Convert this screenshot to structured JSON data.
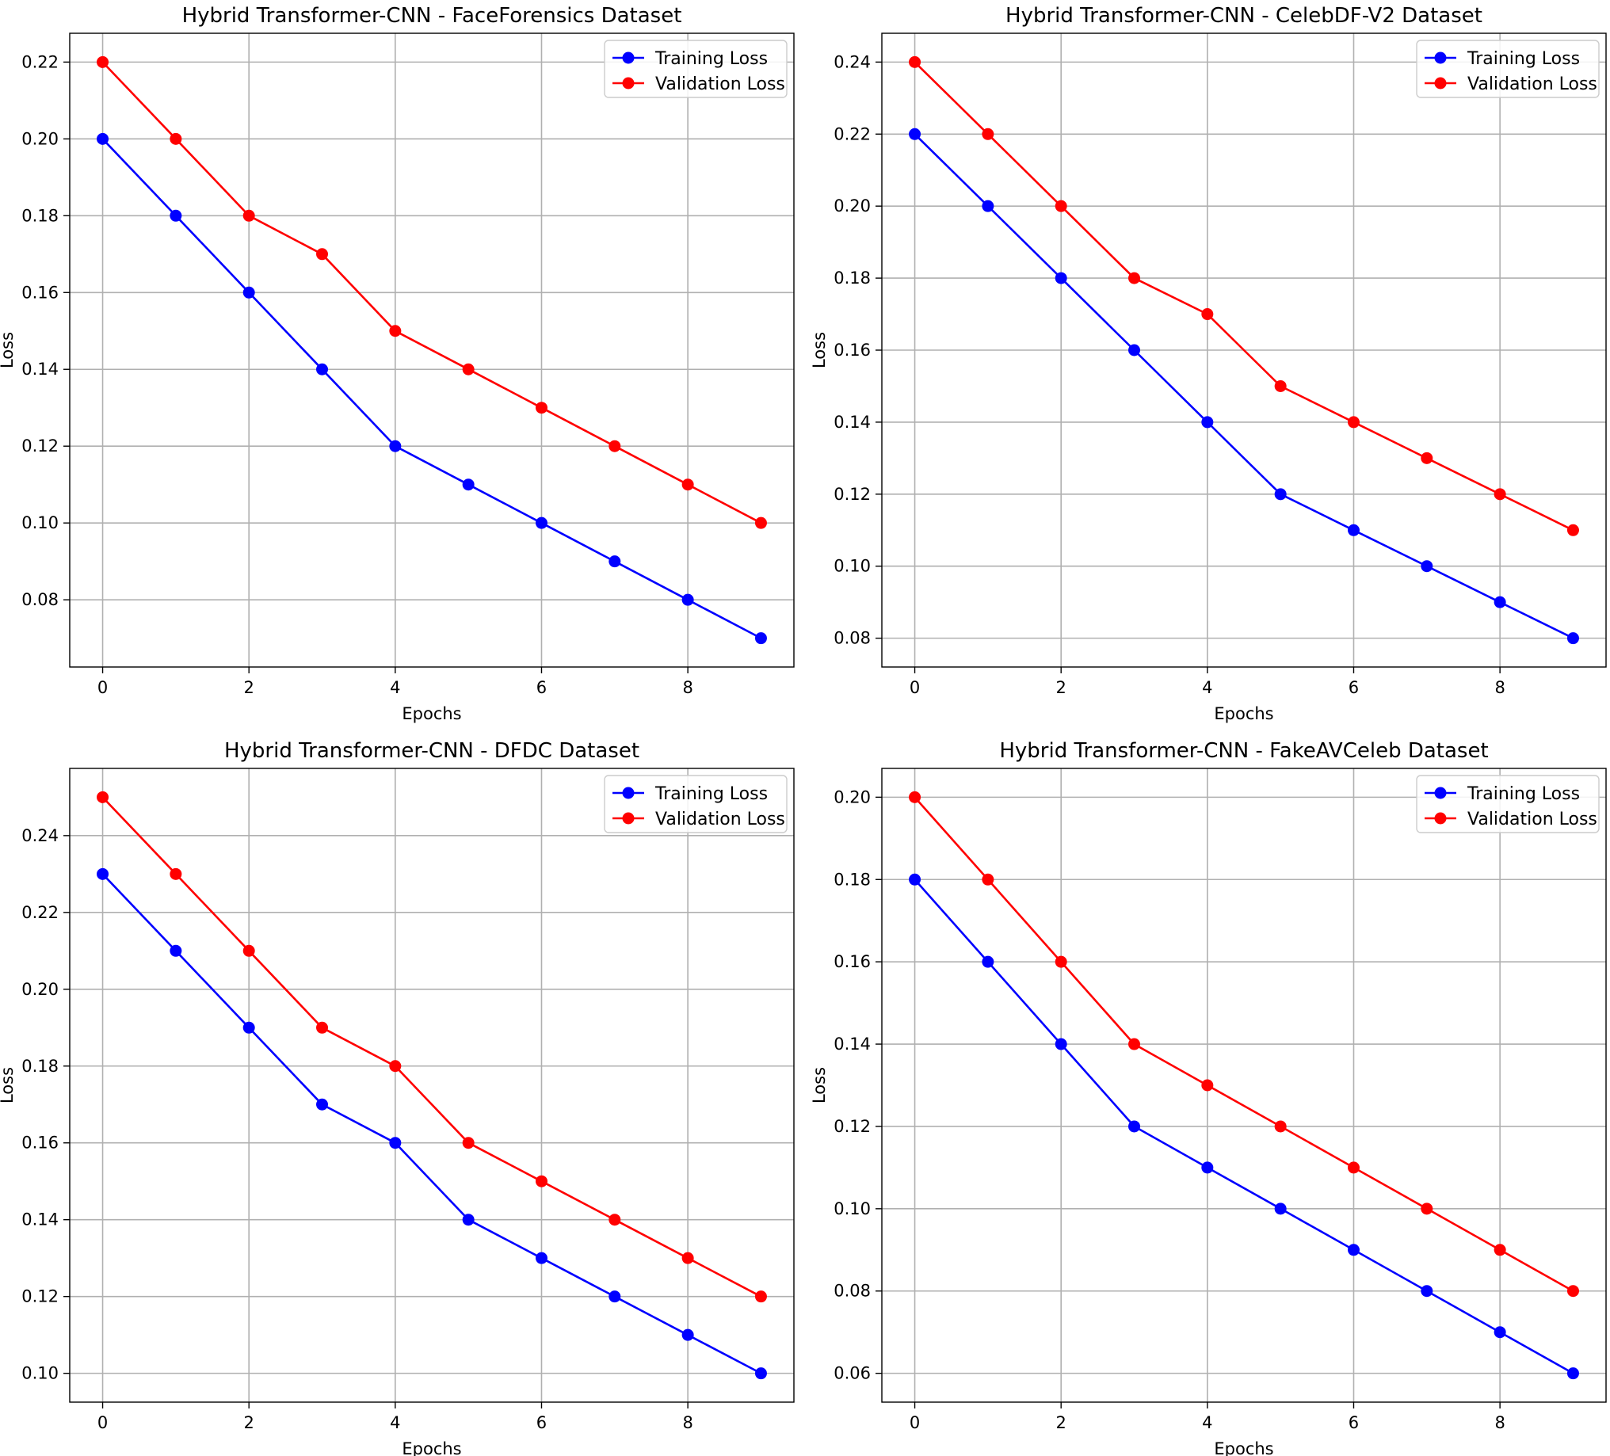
{
  "chart_data": [
    {
      "type": "line",
      "title": "Hybrid Transformer-CNN - FaceForensics Dataset",
      "xlabel": "Epochs",
      "ylabel": "Loss",
      "x": [
        0,
        1,
        2,
        3,
        4,
        5,
        6,
        7,
        8,
        9
      ],
      "xlim": [
        -0.45,
        9.45
      ],
      "ylim": [
        0.0625,
        0.2275
      ],
      "xticks": [
        0,
        2,
        4,
        6,
        8
      ],
      "yticks": [
        0.08,
        0.1,
        0.12,
        0.14,
        0.16,
        0.18,
        0.2,
        0.22
      ],
      "grid": true,
      "legend": "top-right",
      "series": [
        {
          "name": "Training Loss",
          "color": "#0000ff",
          "values": [
            0.2,
            0.18,
            0.16,
            0.14,
            0.12,
            0.11,
            0.1,
            0.09,
            0.08,
            0.07
          ]
        },
        {
          "name": "Validation Loss",
          "color": "#ff0000",
          "values": [
            0.22,
            0.2,
            0.18,
            0.17,
            0.15,
            0.14,
            0.13,
            0.12,
            0.11,
            0.1
          ]
        }
      ]
    },
    {
      "type": "line",
      "title": "Hybrid Transformer-CNN - CelebDF-V2 Dataset",
      "xlabel": "Epochs",
      "ylabel": "Loss",
      "x": [
        0,
        1,
        2,
        3,
        4,
        5,
        6,
        7,
        8,
        9
      ],
      "xlim": [
        -0.45,
        9.45
      ],
      "ylim": [
        0.072,
        0.248
      ],
      "xticks": [
        0,
        2,
        4,
        6,
        8
      ],
      "yticks": [
        0.08,
        0.1,
        0.12,
        0.14,
        0.16,
        0.18,
        0.2,
        0.22,
        0.24
      ],
      "grid": true,
      "legend": "top-right",
      "series": [
        {
          "name": "Training Loss",
          "color": "#0000ff",
          "values": [
            0.22,
            0.2,
            0.18,
            0.16,
            0.14,
            0.12,
            0.11,
            0.1,
            0.09,
            0.08
          ]
        },
        {
          "name": "Validation Loss",
          "color": "#ff0000",
          "values": [
            0.24,
            0.22,
            0.2,
            0.18,
            0.17,
            0.15,
            0.14,
            0.13,
            0.12,
            0.11
          ]
        }
      ]
    },
    {
      "type": "line",
      "title": "Hybrid Transformer-CNN - DFDC Dataset",
      "xlabel": "Epochs",
      "ylabel": "Loss",
      "x": [
        0,
        1,
        2,
        3,
        4,
        5,
        6,
        7,
        8,
        9
      ],
      "xlim": [
        -0.45,
        9.45
      ],
      "ylim": [
        0.0925,
        0.2575
      ],
      "xticks": [
        0,
        2,
        4,
        6,
        8
      ],
      "yticks": [
        0.1,
        0.12,
        0.14,
        0.16,
        0.18,
        0.2,
        0.22,
        0.24
      ],
      "grid": true,
      "legend": "top-right",
      "series": [
        {
          "name": "Training Loss",
          "color": "#0000ff",
          "values": [
            0.23,
            0.21,
            0.19,
            0.17,
            0.16,
            0.14,
            0.13,
            0.12,
            0.11,
            0.1
          ]
        },
        {
          "name": "Validation Loss",
          "color": "#ff0000",
          "values": [
            0.25,
            0.23,
            0.21,
            0.19,
            0.18,
            0.16,
            0.15,
            0.14,
            0.13,
            0.12
          ]
        }
      ]
    },
    {
      "type": "line",
      "title": "Hybrid Transformer-CNN - FakeAVCeleb Dataset",
      "xlabel": "Epochs",
      "ylabel": "Loss",
      "x": [
        0,
        1,
        2,
        3,
        4,
        5,
        6,
        7,
        8,
        9
      ],
      "xlim": [
        -0.45,
        9.45
      ],
      "ylim": [
        0.053,
        0.207
      ],
      "xticks": [
        0,
        2,
        4,
        6,
        8
      ],
      "yticks": [
        0.06,
        0.08,
        0.1,
        0.12,
        0.14,
        0.16,
        0.18,
        0.2
      ],
      "grid": true,
      "legend": "top-right",
      "series": [
        {
          "name": "Training Loss",
          "color": "#0000ff",
          "values": [
            0.18,
            0.16,
            0.14,
            0.12,
            0.11,
            0.1,
            0.09,
            0.08,
            0.07,
            0.06
          ]
        },
        {
          "name": "Validation Loss",
          "color": "#ff0000",
          "values": [
            0.2,
            0.18,
            0.16,
            0.14,
            0.13,
            0.12,
            0.11,
            0.1,
            0.09,
            0.08
          ]
        }
      ]
    }
  ]
}
